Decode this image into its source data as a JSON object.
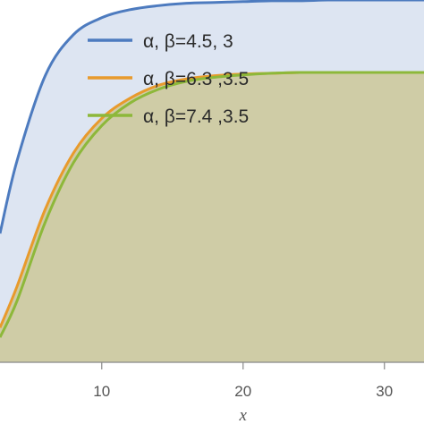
{
  "chart_data": {
    "type": "area",
    "title": "",
    "xlabel": "x",
    "ylabel": "",
    "xlim": [
      2.8,
      32.8
    ],
    "ylim": [
      0,
      1
    ],
    "x_ticks": [
      10,
      20,
      30
    ],
    "x_tick_labels": [
      "10",
      "20",
      "30"
    ],
    "grid": false,
    "legend_placement": "top-right",
    "legend": [
      {
        "text": "α, β=4.5, 3",
        "color": "#4d7bbf"
      },
      {
        "text": "α, β=6.3 ,3.5",
        "color": "#e89a2c"
      },
      {
        "text": "α, β=7.4 ,3.5",
        "color": "#8db83a"
      }
    ],
    "series": [
      {
        "name": "α, β=4.5, 3",
        "color": "#4d7bbf",
        "fill": "#dde5f2",
        "x": [
          2.8,
          4,
          6,
          8,
          10,
          12,
          14,
          16,
          18,
          20,
          22,
          24,
          26,
          28,
          30,
          32.8
        ],
        "y": [
          0.3556,
          0.5556,
          0.7911,
          0.9044,
          0.9511,
          0.9733,
          0.9844,
          0.9911,
          0.9933,
          0.9956,
          0.9978,
          0.9978,
          1.0,
          1.0,
          1.0,
          1.0
        ]
      },
      {
        "name": "α, β=6.3 ,3.5",
        "color": "#e89a2c",
        "fill": "#cfcca6",
        "x": [
          2.8,
          4,
          6,
          8,
          10,
          12,
          14,
          16,
          18,
          20,
          22,
          24,
          26,
          28,
          30,
          32.8
        ],
        "y": [
          0.0956,
          0.2089,
          0.4222,
          0.5778,
          0.6733,
          0.7289,
          0.7644,
          0.7822,
          0.7911,
          0.7956,
          0.7978,
          0.8,
          0.8,
          0.8,
          0.8,
          0.8
        ]
      },
      {
        "name": "α, β=7.4 ,3.5",
        "color": "#8db83a",
        "fill": "#cfcca6",
        "x": [
          2.8,
          4,
          6,
          8,
          10,
          12,
          14,
          16,
          18,
          20,
          22,
          24,
          26,
          28,
          30,
          32.8
        ],
        "y": [
          0.0689,
          0.1689,
          0.3867,
          0.5511,
          0.6533,
          0.7156,
          0.7533,
          0.7756,
          0.7867,
          0.7933,
          0.7978,
          0.8,
          0.8,
          0.8,
          0.8,
          0.8
        ]
      }
    ]
  }
}
